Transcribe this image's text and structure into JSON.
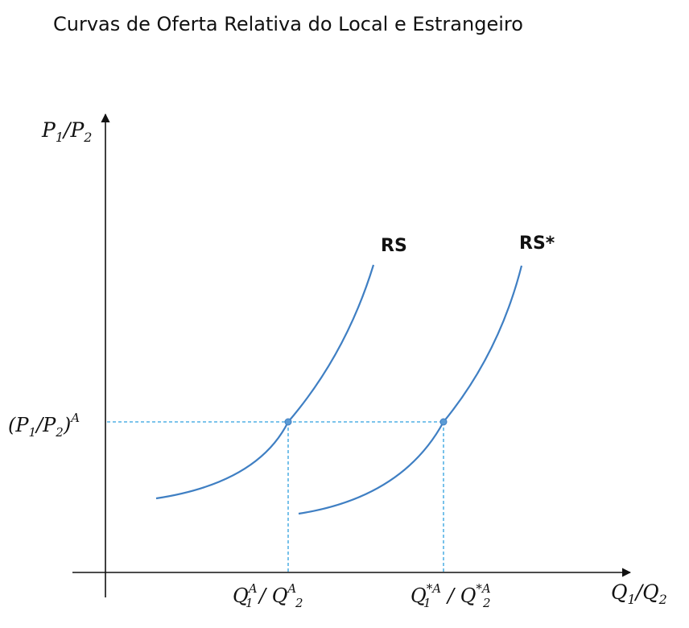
{
  "title": "Curvas de Oferta Relativa do Local e Estrangeiro",
  "axes": {
    "y_label_parts": [
      "P",
      "1",
      "/P",
      "2"
    ],
    "x_label_parts": [
      "Q",
      "1",
      "/Q",
      "2"
    ]
  },
  "curves": {
    "rs_label": "RS",
    "rs_star_label": "RS*"
  },
  "equilibrium": {
    "price_parts": [
      "(P",
      "1",
      "/P",
      "2",
      ")",
      "A"
    ],
    "home_quantity_parts": [
      "Q",
      "A",
      "1",
      "/ Q",
      "A",
      "2"
    ],
    "foreign_quantity_parts": [
      "Q",
      "*A",
      "1",
      "/ Q",
      "*A",
      "2"
    ]
  },
  "colors": {
    "curve": "#3f7fc3",
    "guide": "#2ea0df",
    "axis": "#111111"
  }
}
